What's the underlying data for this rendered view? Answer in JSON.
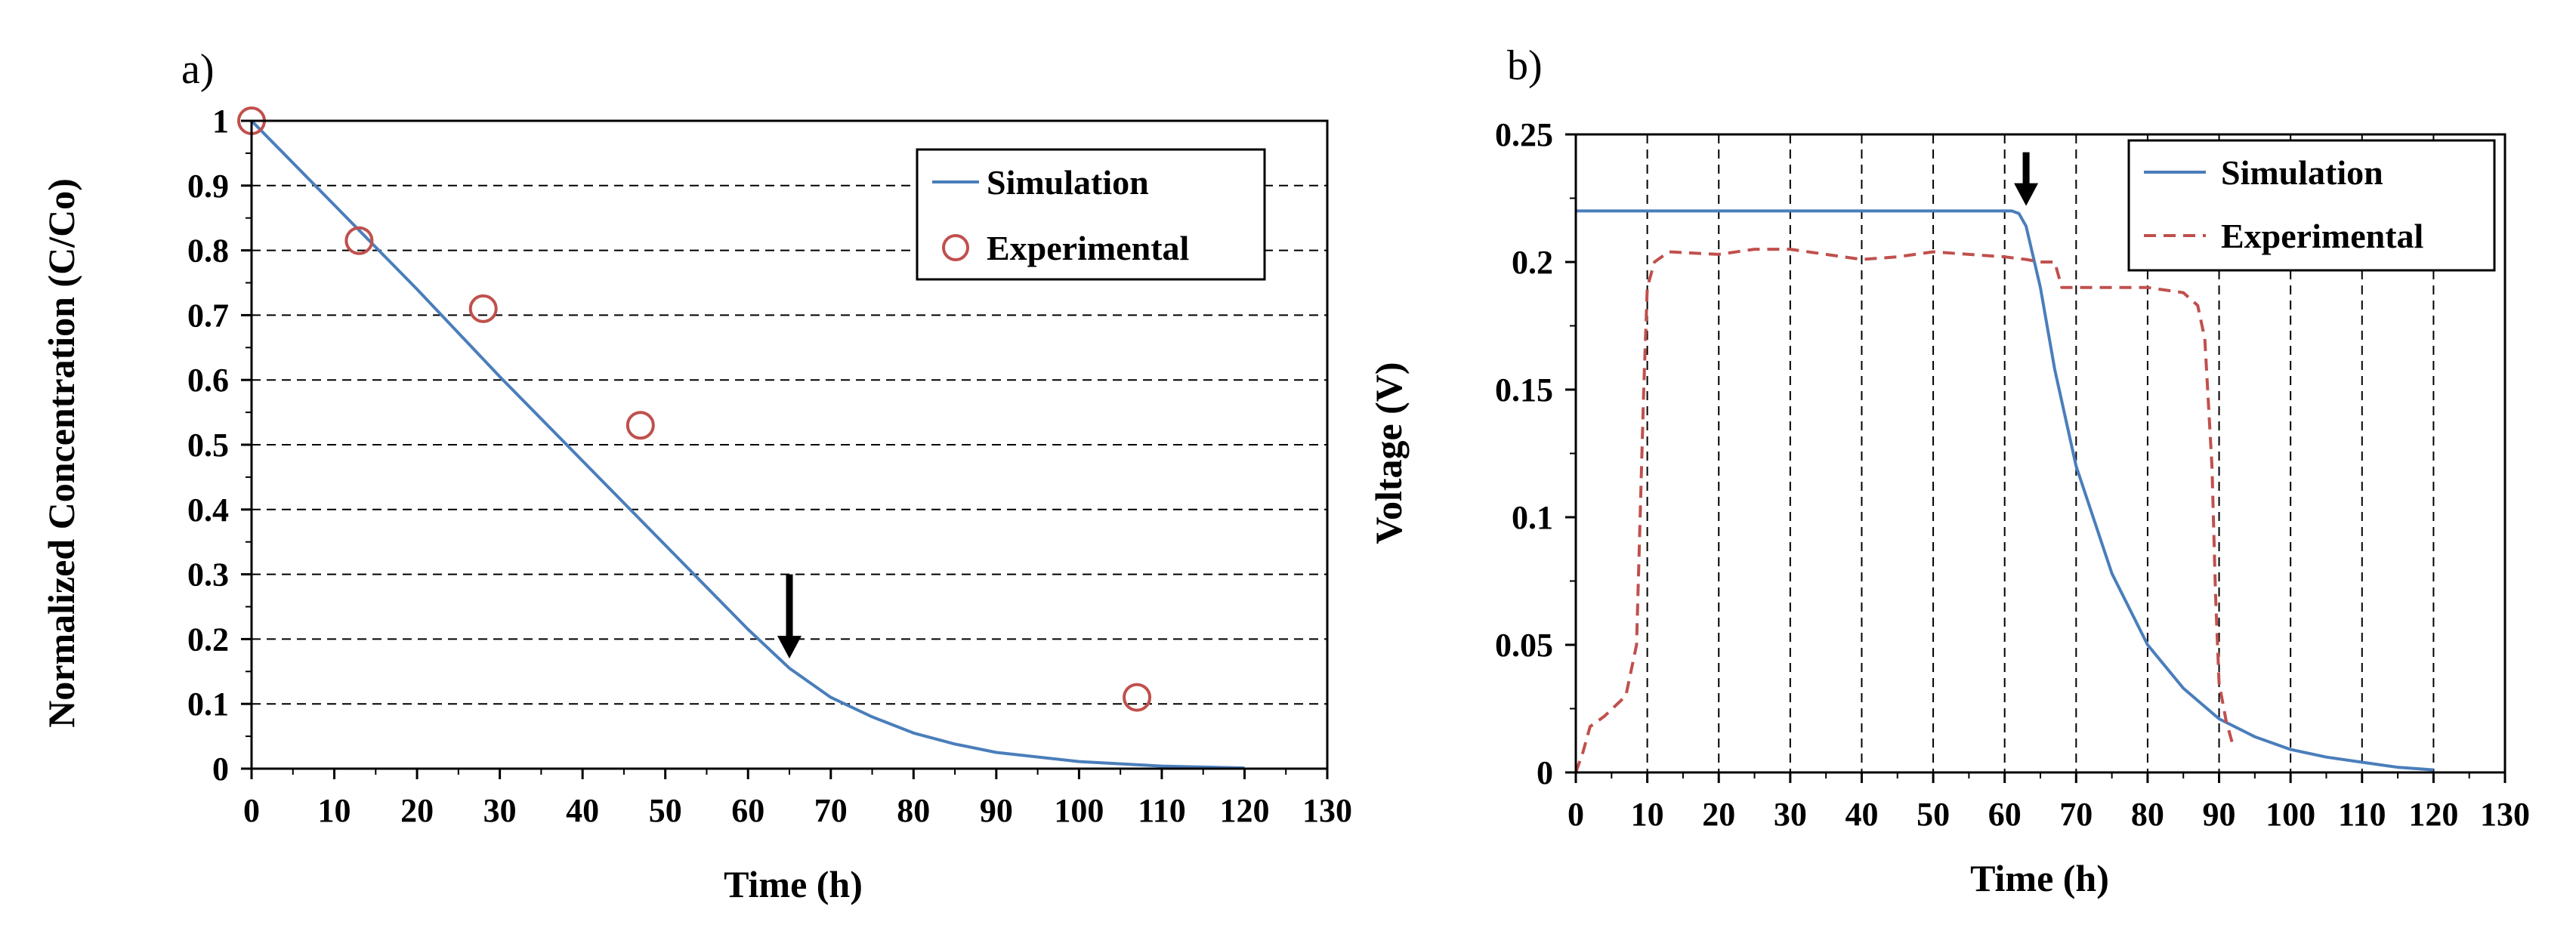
{
  "chart_data": [
    {
      "panel_label": "a)",
      "type": "line+scatter",
      "xlabel": "Time (h)",
      "ylabel": "Normalized Concentration (C/Co)",
      "xlim": [
        0,
        130
      ],
      "ylim": [
        0,
        1
      ],
      "x_ticks": [
        "0",
        "10",
        "20",
        "30",
        "40",
        "50",
        "60",
        "70",
        "80",
        "90",
        "100",
        "110",
        "120",
        "130"
      ],
      "y_ticks": [
        "0",
        "0.1",
        "0.2",
        "0.3",
        "0.4",
        "0.5",
        "0.6",
        "0.7",
        "0.8",
        "0.9",
        "1"
      ],
      "grid": "horizontal dashed",
      "legend_position": "top-right",
      "series": [
        {
          "name": "Simulation",
          "style": "solid line",
          "color": "#4a7ebb",
          "points": [
            [
              0,
              1.0
            ],
            [
              10,
              0.87
            ],
            [
              20,
              0.74
            ],
            [
              30,
              0.605
            ],
            [
              40,
              0.475
            ],
            [
              50,
              0.345
            ],
            [
              60,
              0.215
            ],
            [
              65,
              0.155
            ],
            [
              70,
              0.11
            ],
            [
              75,
              0.08
            ],
            [
              80,
              0.055
            ],
            [
              85,
              0.038
            ],
            [
              90,
              0.025
            ],
            [
              100,
              0.011
            ],
            [
              110,
              0.004
            ],
            [
              120,
              0.001
            ]
          ]
        },
        {
          "name": "Experimental",
          "style": "hollow circles",
          "color": "#c0504d",
          "points": [
            [
              0,
              1.0
            ],
            [
              13,
              0.815
            ],
            [
              28,
              0.71
            ],
            [
              47,
              0.53
            ],
            [
              107,
              0.11
            ]
          ]
        }
      ],
      "annotations": [
        {
          "type": "arrow",
          "direction": "down",
          "x": 65,
          "y_from": 0.3,
          "y_to": 0.17
        }
      ]
    },
    {
      "panel_label": "b)",
      "type": "line",
      "xlabel": "Time (h)",
      "ylabel": "Voltage (V)",
      "xlim": [
        0,
        130
      ],
      "ylim": [
        0,
        0.25
      ],
      "x_ticks": [
        "0",
        "10",
        "20",
        "30",
        "40",
        "50",
        "60",
        "70",
        "80",
        "90",
        "100",
        "110",
        "120",
        "130"
      ],
      "y_ticks": [
        "0",
        "0.05",
        "0.1",
        "0.15",
        "0.2",
        "0.25"
      ],
      "grid": "vertical dashed",
      "legend_position": "top-right",
      "series": [
        {
          "name": "Simulation",
          "style": "solid line",
          "color": "#4a7ebb",
          "points": [
            [
              0,
              0.22
            ],
            [
              61,
              0.22
            ],
            [
              62,
              0.219
            ],
            [
              63,
              0.214
            ],
            [
              65,
              0.19
            ],
            [
              67,
              0.158
            ],
            [
              70,
              0.12
            ],
            [
              75,
              0.078
            ],
            [
              80,
              0.05
            ],
            [
              85,
              0.033
            ],
            [
              90,
              0.021
            ],
            [
              95,
              0.014
            ],
            [
              100,
              0.009
            ],
            [
              105,
              0.006
            ],
            [
              110,
              0.004
            ],
            [
              115,
              0.002
            ],
            [
              120,
              0.001
            ]
          ]
        },
        {
          "name": "Experimental",
          "style": "dashed line",
          "color": "#c0504d",
          "points": [
            [
              0,
              0.0
            ],
            [
              1,
              0.008
            ],
            [
              2,
              0.018
            ],
            [
              4,
              0.022
            ],
            [
              7,
              0.03
            ],
            [
              8.5,
              0.05
            ],
            [
              9.5,
              0.15
            ],
            [
              10,
              0.19
            ],
            [
              11,
              0.2
            ],
            [
              13,
              0.204
            ],
            [
              20,
              0.203
            ],
            [
              25,
              0.205
            ],
            [
              30,
              0.205
            ],
            [
              35,
              0.203
            ],
            [
              40,
              0.201
            ],
            [
              45,
              0.202
            ],
            [
              50,
              0.204
            ],
            [
              55,
              0.203
            ],
            [
              60,
              0.202
            ],
            [
              63,
              0.201
            ],
            [
              65,
              0.2
            ],
            [
              67,
              0.2
            ],
            [
              68,
              0.19
            ],
            [
              70,
              0.19
            ],
            [
              75,
              0.19
            ],
            [
              80,
              0.19
            ],
            [
              85,
              0.188
            ],
            [
              87,
              0.183
            ],
            [
              88,
              0.17
            ],
            [
              89,
              0.12
            ],
            [
              89.5,
              0.07
            ],
            [
              90,
              0.035
            ],
            [
              91,
              0.02
            ],
            [
              92,
              0.01
            ]
          ]
        }
      ],
      "annotations": [
        {
          "type": "arrow",
          "direction": "down",
          "x": 63,
          "y_from": 0.243,
          "y_to": 0.222
        }
      ]
    }
  ]
}
